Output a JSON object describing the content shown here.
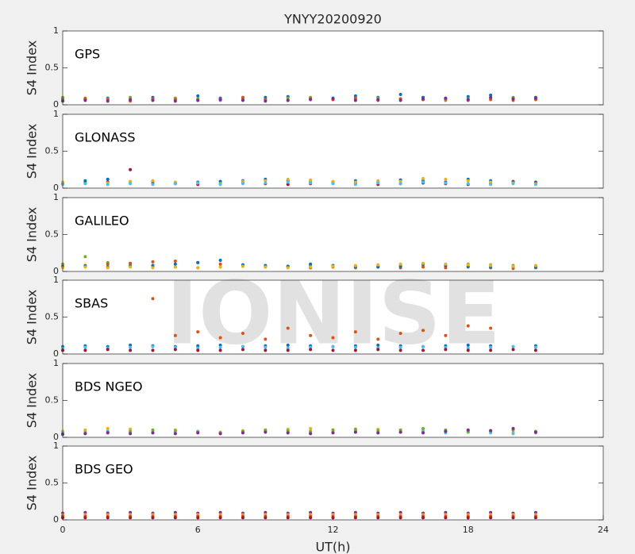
{
  "watermark": "IONISE",
  "chart_data": [
    {
      "type": "scatter",
      "title": "YNYY20200920",
      "label": "GPS",
      "ylabel": "S4 Index",
      "xlim": [
        0,
        24
      ],
      "ylim": [
        0,
        1
      ],
      "yticks": [
        0,
        0.5,
        1
      ],
      "x": [
        0,
        1,
        2,
        3,
        4,
        5,
        6,
        7,
        8,
        9,
        10,
        11,
        12,
        13,
        14,
        15,
        16,
        17,
        18,
        19,
        20,
        21
      ],
      "series": [
        {
          "color": "#0072BD",
          "values": [
            0.08,
            0.07,
            0.09,
            0.06,
            0.1,
            0.08,
            0.12,
            0.09,
            0.07,
            0.1,
            0.11,
            0.08,
            0.09,
            0.12,
            0.1,
            0.14,
            0.1,
            0.08,
            0.11,
            0.13,
            0.09,
            0.1
          ]
        },
        {
          "color": "#77AC30",
          "values": [
            0.1,
            0.09,
            0.08,
            0.1,
            0.07,
            0.09,
            0.08,
            0.06,
            0.08,
            0.07,
            0.09,
            0.1,
            0.08,
            0.07,
            0.09,
            0.08,
            0.07,
            0.06,
            0.08,
            0.09,
            0.1,
            0.08
          ]
        },
        {
          "color": "#D95319",
          "values": [
            0.06,
            0.08,
            0.07,
            0.05,
            0.08,
            0.07,
            0.06,
            0.08,
            0.1,
            0.07,
            0.06,
            0.08,
            0.07,
            0.09,
            0.06,
            0.08,
            0.07,
            0.08,
            0.06,
            0.07,
            0.06,
            0.07
          ]
        },
        {
          "color": "#7E2F8E",
          "values": [
            0.05,
            0.06,
            0.05,
            0.07,
            0.06,
            0.05,
            0.06,
            0.07,
            0.06,
            0.05,
            0.06,
            0.07,
            0.08,
            0.06,
            0.07,
            0.06,
            0.08,
            0.09,
            0.07,
            0.1,
            0.08,
            0.09
          ]
        }
      ]
    },
    {
      "type": "scatter",
      "label": "GLONASS",
      "ylabel": "S4 Index",
      "xlim": [
        0,
        24
      ],
      "ylim": [
        0,
        1
      ],
      "yticks": [
        0,
        0.5,
        1
      ],
      "x": [
        0,
        1,
        2,
        3,
        4,
        5,
        6,
        7,
        8,
        9,
        10,
        11,
        12,
        13,
        14,
        15,
        16,
        17,
        18,
        19,
        20,
        21
      ],
      "series": [
        {
          "color": "#0072BD",
          "values": [
            0.07,
            0.1,
            0.12,
            0.08,
            0.06,
            0.07,
            0.08,
            0.09,
            0.1,
            0.12,
            0.1,
            0.08,
            0.07,
            0.1,
            0.09,
            0.11,
            0.1,
            0.08,
            0.12,
            0.1,
            0.09,
            0.08
          ]
        },
        {
          "color": "#A2142F",
          "values": [
            0.06,
            0.07,
            0.08,
            0.25,
            0.09,
            0.06,
            0.05,
            0.06,
            0.07,
            0.06,
            0.05,
            0.06,
            0.07,
            0.06,
            0.05,
            0.06,
            0.07,
            0.06,
            0.05,
            0.06,
            0.08,
            0.07
          ]
        },
        {
          "color": "#EDB120",
          "values": [
            0.08,
            0.06,
            0.07,
            0.09,
            0.1,
            0.08,
            0.07,
            0.06,
            0.09,
            0.1,
            0.12,
            0.11,
            0.09,
            0.08,
            0.1,
            0.09,
            0.13,
            0.12,
            0.1,
            0.08,
            0.07,
            0.06
          ]
        },
        {
          "color": "#4DBEEE",
          "values": [
            0.05,
            0.06,
            0.05,
            0.06,
            0.05,
            0.06,
            0.07,
            0.05,
            0.06,
            0.07,
            0.08,
            0.07,
            0.06,
            0.05,
            0.07,
            0.06,
            0.08,
            0.07,
            0.06,
            0.05,
            0.06,
            0.05
          ]
        }
      ]
    },
    {
      "type": "scatter",
      "label": "GALILEO",
      "ylabel": "S4 Index",
      "xlim": [
        0,
        24
      ],
      "ylim": [
        0,
        1
      ],
      "yticks": [
        0,
        0.5,
        1
      ],
      "x": [
        0,
        1,
        2,
        3,
        4,
        5,
        6,
        7,
        8,
        9,
        10,
        11,
        12,
        13,
        14,
        15,
        16,
        17,
        18,
        19,
        20,
        21
      ],
      "series": [
        {
          "color": "#77AC30",
          "values": [
            0.1,
            0.2,
            0.12,
            0.09,
            0.07,
            0.06,
            0.05,
            0.06,
            0.07,
            0.06,
            0.07,
            0.08,
            0.07,
            0.06,
            0.07,
            0.08,
            0.09,
            0.08,
            0.1,
            0.09,
            0.08,
            0.07
          ]
        },
        {
          "color": "#D95319",
          "values": [
            0.07,
            0.08,
            0.1,
            0.11,
            0.13,
            0.14,
            0.12,
            0.1,
            0.08,
            0.07,
            0.06,
            0.05,
            0.06,
            0.05,
            0.06,
            0.05,
            0.06,
            0.05,
            0.06,
            0.05,
            0.04,
            0.05
          ]
        },
        {
          "color": "#0072BD",
          "values": [
            0.06,
            0.07,
            0.06,
            0.07,
            0.08,
            0.1,
            0.12,
            0.15,
            0.09,
            0.08,
            0.07,
            0.1,
            0.08,
            0.07,
            0.06,
            0.07,
            0.1,
            0.08,
            0.07,
            0.06,
            0.07,
            0.06
          ]
        },
        {
          "color": "#EDB120",
          "values": [
            0.05,
            0.06,
            0.05,
            0.06,
            0.05,
            0.06,
            0.05,
            0.06,
            0.07,
            0.06,
            0.05,
            0.06,
            0.07,
            0.08,
            0.09,
            0.1,
            0.11,
            0.1,
            0.09,
            0.08,
            0.07,
            0.08
          ]
        }
      ]
    },
    {
      "type": "scatter",
      "label": "SBAS",
      "ylabel": "S4 Index",
      "xlim": [
        0,
        24
      ],
      "ylim": [
        0,
        1
      ],
      "yticks": [
        0,
        0.5,
        1
      ],
      "x": [
        0,
        1,
        2,
        3,
        4,
        5,
        6,
        7,
        8,
        9,
        10,
        11,
        12,
        13,
        14,
        15,
        16,
        17,
        18,
        19,
        20,
        21
      ],
      "series": [
        {
          "color": "#D95319",
          "values": [
            null,
            null,
            null,
            null,
            0.75,
            0.25,
            0.3,
            0.22,
            0.28,
            0.2,
            0.35,
            0.25,
            0.22,
            0.3,
            0.2,
            0.28,
            0.32,
            0.25,
            0.38,
            0.35,
            null,
            null
          ]
        },
        {
          "color": "#0072BD",
          "values": [
            0.1,
            0.11,
            0.1,
            0.12,
            0.11,
            0.1,
            0.11,
            0.12,
            0.1,
            0.11,
            0.12,
            0.11,
            0.1,
            0.11,
            0.12,
            0.11,
            0.1,
            0.11,
            0.12,
            0.11,
            0.1,
            0.11
          ]
        },
        {
          "color": "#4DBEEE",
          "values": [
            0.08,
            0.09,
            0.08,
            0.09,
            0.1,
            0.09,
            0.08,
            0.09,
            0.1,
            0.09,
            0.08,
            0.09,
            0.1,
            0.09,
            0.08,
            0.09,
            0.1,
            0.09,
            0.08,
            0.09,
            0.1,
            0.09
          ]
        },
        {
          "color": "#A2142F",
          "values": [
            0.05,
            0.05,
            0.06,
            0.05,
            0.05,
            0.06,
            0.05,
            0.05,
            0.06,
            0.05,
            0.05,
            0.06,
            0.05,
            0.05,
            0.06,
            0.05,
            0.05,
            0.06,
            0.05,
            0.05,
            0.06,
            0.05
          ]
        }
      ]
    },
    {
      "type": "scatter",
      "label": "BDS NGEO",
      "ylabel": "S4 Index",
      "xlim": [
        0,
        24
      ],
      "ylim": [
        0,
        1
      ],
      "yticks": [
        0,
        0.5,
        1
      ],
      "x": [
        0,
        1,
        2,
        3,
        4,
        5,
        6,
        7,
        8,
        9,
        10,
        11,
        12,
        13,
        14,
        15,
        16,
        17,
        18,
        19,
        20,
        21
      ],
      "series": [
        {
          "color": "#EDB120",
          "values": [
            0.08,
            0.1,
            0.12,
            0.11,
            0.09,
            0.1,
            0.08,
            0.07,
            0.09,
            0.1,
            0.11,
            0.12,
            0.1,
            0.09,
            0.11,
            0.1,
            0.09,
            0.08,
            0.07,
            0.08,
            0.07,
            0.06
          ]
        },
        {
          "color": "#4DBEEE",
          "values": [
            0.06,
            0.07,
            0.08,
            0.07,
            0.06,
            0.07,
            0.08,
            0.06,
            0.07,
            0.08,
            0.07,
            0.06,
            0.07,
            0.08,
            0.06,
            0.07,
            0.08,
            0.06,
            0.07,
            0.06,
            0.05,
            0.06
          ]
        },
        {
          "color": "#77AC30",
          "values": [
            0.05,
            0.06,
            0.07,
            0.08,
            0.1,
            0.09,
            0.07,
            0.06,
            0.08,
            0.1,
            0.09,
            0.08,
            0.1,
            0.11,
            0.09,
            0.1,
            0.12,
            0.1,
            0.08,
            0.09,
            0.1,
            0.08
          ]
        },
        {
          "color": "#7E2F8E",
          "values": [
            0.04,
            0.05,
            0.06,
            0.05,
            0.06,
            0.05,
            0.06,
            0.05,
            0.06,
            0.07,
            0.06,
            0.05,
            0.06,
            0.07,
            0.06,
            0.07,
            0.06,
            0.08,
            0.1,
            0.09,
            0.12,
            0.07
          ]
        }
      ]
    },
    {
      "type": "scatter",
      "label": "BDS GEO",
      "ylabel": "S4 Index",
      "xlabel": "UT(h)",
      "xlim": [
        0,
        24
      ],
      "ylim": [
        0,
        1
      ],
      "xticks": [
        0,
        6,
        12,
        18,
        24
      ],
      "yticks": [
        0,
        0.5,
        1
      ],
      "x": [
        0,
        1,
        2,
        3,
        4,
        5,
        6,
        7,
        8,
        9,
        10,
        11,
        12,
        13,
        14,
        15,
        16,
        17,
        18,
        19,
        20,
        21
      ],
      "series": [
        {
          "color": "#7E2F8E",
          "values": [
            0.09,
            0.1,
            0.09,
            0.1,
            0.09,
            0.1,
            0.09,
            0.1,
            0.09,
            0.1,
            0.09,
            0.1,
            0.09,
            0.1,
            0.09,
            0.1,
            0.09,
            0.1,
            0.09,
            0.1,
            0.09,
            0.1
          ]
        },
        {
          "color": "#EDB120",
          "values": [
            0.07,
            0.07,
            0.07,
            0.07,
            0.07,
            0.07,
            0.07,
            0.07,
            0.07,
            0.07,
            0.07,
            0.07,
            0.07,
            0.07,
            0.07,
            0.07,
            0.07,
            0.07,
            0.07,
            0.07,
            0.07,
            0.07
          ]
        },
        {
          "color": "#D95319",
          "values": [
            0.05,
            0.05,
            0.05,
            0.05,
            0.05,
            0.05,
            0.05,
            0.05,
            0.05,
            0.05,
            0.05,
            0.05,
            0.05,
            0.05,
            0.05,
            0.05,
            0.05,
            0.05,
            0.05,
            0.05,
            0.05,
            0.05
          ]
        },
        {
          "color": "#A2142F",
          "values": [
            0.03,
            0.03,
            0.03,
            0.03,
            0.03,
            0.03,
            0.03,
            0.03,
            0.03,
            0.03,
            0.03,
            0.03,
            0.03,
            0.03,
            0.03,
            0.03,
            0.03,
            0.03,
            0.03,
            0.03,
            0.03,
            0.03
          ]
        }
      ]
    }
  ]
}
